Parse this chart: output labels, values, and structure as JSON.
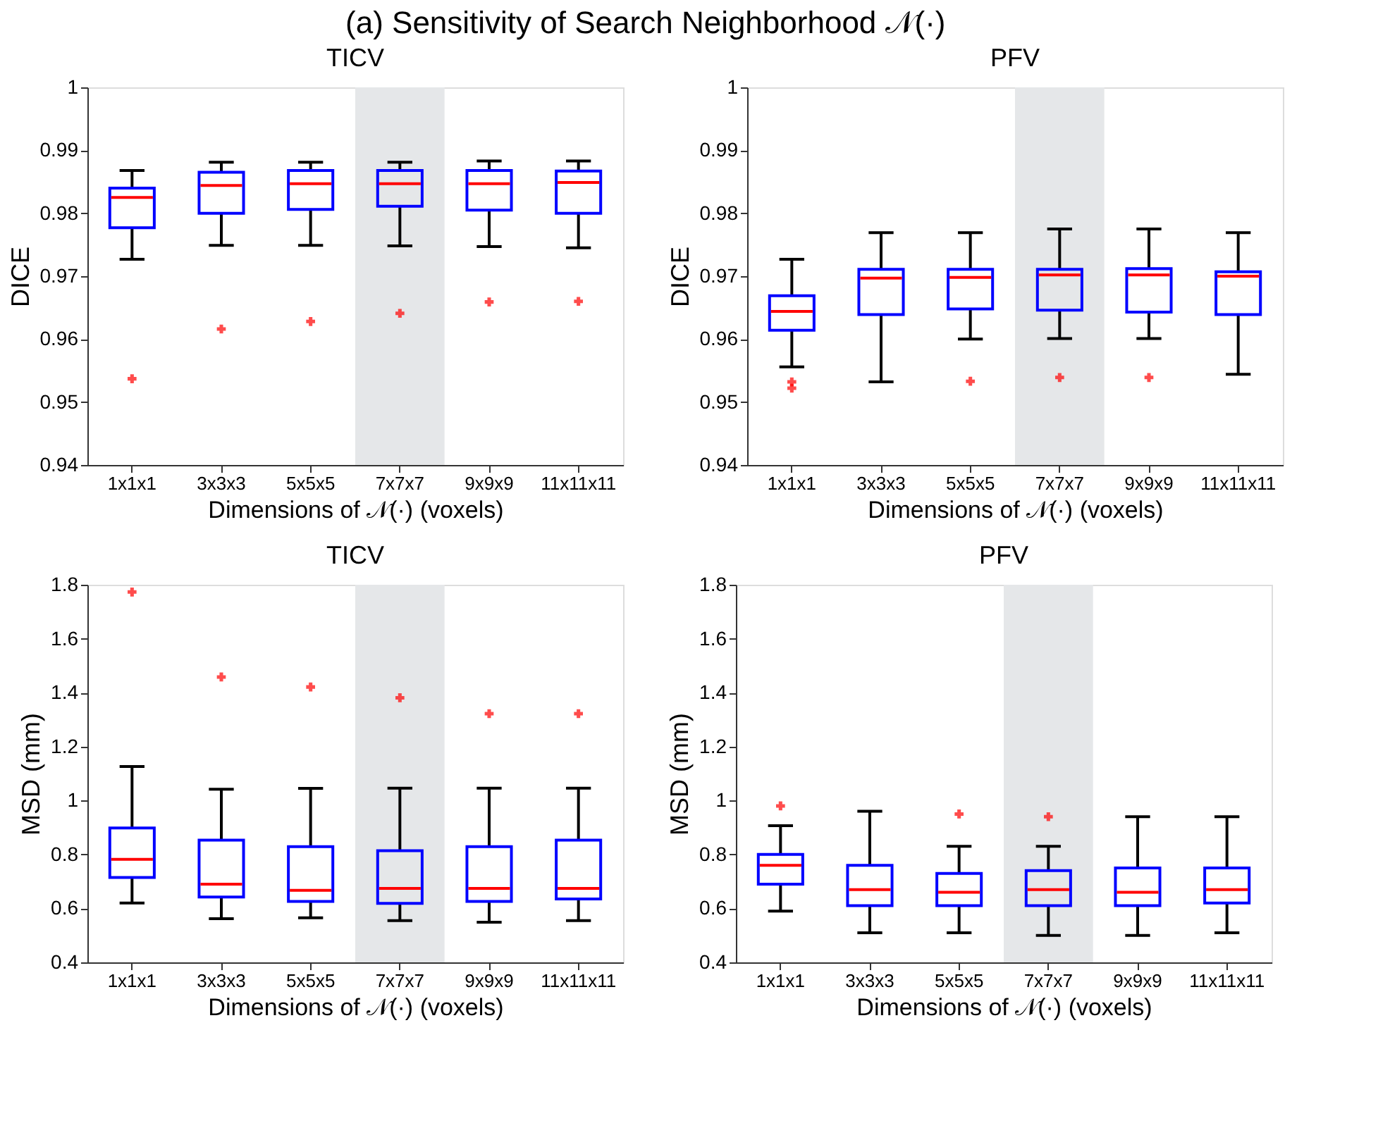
{
  "chart_data": [
    {
      "type": "box",
      "annotations": [
        "(a) Sensitivity of Search Neighborhood 𝒩(·)"
      ],
      "title": "TICV",
      "xlabel": "Dimensions of 𝒩(·) (voxels)",
      "ylabel": "DICE",
      "categories": [
        "1x1x1",
        "3x3x3",
        "5x5x5",
        "7x7x7",
        "9x9x9",
        "11x11x11"
      ],
      "ylim": [
        0.94,
        1
      ],
      "yticks": [
        0.94,
        0.95,
        0.96,
        0.97,
        0.98,
        0.99,
        1
      ],
      "grid": false,
      "bands": [
        {
          "axis": "x",
          "from": "7x7x7",
          "to": "7x7x7",
          "color": "#e5e7e9"
        }
      ],
      "series": [
        {
          "color": "#0000ff",
          "boxes": [
            {
              "low": 0.9727,
              "q1": 0.9777,
              "median": 0.9825,
              "q3": 0.984,
              "high": 0.9868,
              "outliers": [
                0.9537
              ]
            },
            {
              "low": 0.9749,
              "q1": 0.98,
              "median": 0.9844,
              "q3": 0.9865,
              "high": 0.9881,
              "outliers": [
                0.9616
              ]
            },
            {
              "low": 0.9749,
              "q1": 0.9806,
              "median": 0.9847,
              "q3": 0.9868,
              "high": 0.9881,
              "outliers": [
                0.9628
              ]
            },
            {
              "low": 0.9748,
              "q1": 0.9811,
              "median": 0.9847,
              "q3": 0.9868,
              "high": 0.9881,
              "outliers": [
                0.9641
              ]
            },
            {
              "low": 0.9747,
              "q1": 0.9805,
              "median": 0.9847,
              "q3": 0.9868,
              "high": 0.9883,
              "outliers": [
                0.9659
              ]
            },
            {
              "low": 0.9745,
              "q1": 0.98,
              "median": 0.9849,
              "q3": 0.9867,
              "high": 0.9883,
              "outliers": [
                0.966
              ]
            }
          ]
        }
      ]
    },
    {
      "type": "box",
      "title": "PFV",
      "xlabel": "Dimensions of 𝒩(·) (voxels)",
      "ylabel": "DICE",
      "categories": [
        "1x1x1",
        "3x3x3",
        "5x5x5",
        "7x7x7",
        "9x9x9",
        "11x11x11"
      ],
      "ylim": [
        0.94,
        1
      ],
      "yticks": [
        0.94,
        0.95,
        0.96,
        0.97,
        0.98,
        0.99,
        1
      ],
      "grid": false,
      "bands": [
        {
          "axis": "x",
          "from": "7x7x7",
          "to": "7x7x7",
          "color": "#e5e7e9"
        }
      ],
      "series": [
        {
          "color": "#0000ff",
          "boxes": [
            {
              "low": 0.9556,
              "q1": 0.9614,
              "median": 0.9644,
              "q3": 0.9669,
              "high": 0.9727,
              "outliers": [
                0.9532,
                0.9522
              ]
            },
            {
              "low": 0.9532,
              "q1": 0.9639,
              "median": 0.9697,
              "q3": 0.9711,
              "high": 0.9769
            },
            {
              "low": 0.96,
              "q1": 0.9648,
              "median": 0.9698,
              "q3": 0.9711,
              "high": 0.9769,
              "outliers": [
                0.9533
              ]
            },
            {
              "low": 0.9601,
              "q1": 0.9646,
              "median": 0.9702,
              "q3": 0.9711,
              "high": 0.9775,
              "outliers": [
                0.9539
              ]
            },
            {
              "low": 0.9601,
              "q1": 0.9643,
              "median": 0.9702,
              "q3": 0.9712,
              "high": 0.9775,
              "outliers": [
                0.9539
              ]
            },
            {
              "low": 0.9544,
              "q1": 0.9639,
              "median": 0.97,
              "q3": 0.9707,
              "high": 0.9769
            }
          ]
        }
      ]
    },
    {
      "type": "box",
      "title": "TICV",
      "xlabel": "Dimensions of 𝒩(·) (voxels)",
      "ylabel": "MSD (mm)",
      "categories": [
        "1x1x1",
        "3x3x3",
        "5x5x5",
        "7x7x7",
        "9x9x9",
        "11x11x11"
      ],
      "ylim": [
        0.4,
        1.8
      ],
      "yticks": [
        0.4,
        0.6,
        0.8,
        1,
        1.2,
        1.4,
        1.6,
        1.8
      ],
      "grid": false,
      "bands": [
        {
          "axis": "x",
          "from": "7x7x7",
          "to": "7x7x7",
          "color": "#e5e7e9"
        }
      ],
      "series": [
        {
          "color": "#0000ff",
          "boxes": [
            {
              "low": 0.62,
              "q1": 0.715,
              "median": 0.782,
              "q3": 0.898,
              "high": 1.126,
              "outliers": [
                1.773
              ]
            },
            {
              "low": 0.562,
              "q1": 0.642,
              "median": 0.69,
              "q3": 0.853,
              "high": 1.042,
              "outliers": [
                1.458
              ]
            },
            {
              "low": 0.565,
              "q1": 0.626,
              "median": 0.667,
              "q3": 0.829,
              "high": 1.045,
              "outliers": [
                1.421
              ]
            },
            {
              "low": 0.555,
              "q1": 0.619,
              "median": 0.674,
              "q3": 0.814,
              "high": 1.046,
              "outliers": [
                1.381
              ]
            },
            {
              "low": 0.549,
              "q1": 0.626,
              "median": 0.674,
              "q3": 0.829,
              "high": 1.046,
              "outliers": [
                1.322
              ]
            },
            {
              "low": 0.555,
              "q1": 0.635,
              "median": 0.674,
              "q3": 0.853,
              "high": 1.046,
              "outliers": [
                1.322
              ]
            }
          ]
        }
      ]
    },
    {
      "type": "box",
      "title": "PFV",
      "xlabel": "Dimensions of 𝒩(·) (voxels)",
      "ylabel": "MSD (mm)",
      "categories": [
        "1x1x1",
        "3x3x3",
        "5x5x5",
        "7x7x7",
        "9x9x9",
        "11x11x11"
      ],
      "ylim": [
        0.4,
        1.8
      ],
      "yticks": [
        0.4,
        0.6,
        0.8,
        1,
        1.2,
        1.4,
        1.6,
        1.8
      ],
      "grid": false,
      "bands": [
        {
          "axis": "x",
          "from": "7x7x7",
          "to": "7x7x7",
          "color": "#e5e7e9"
        }
      ],
      "series": [
        {
          "color": "#0000ff",
          "boxes": [
            {
              "low": 0.59,
              "q1": 0.69,
              "median": 0.76,
              "q3": 0.8,
              "high": 0.907,
              "outliers": [
                0.98
              ]
            },
            {
              "low": 0.51,
              "q1": 0.61,
              "median": 0.67,
              "q3": 0.76,
              "high": 0.96
            },
            {
              "low": 0.51,
              "q1": 0.61,
              "median": 0.66,
              "q3": 0.73,
              "high": 0.83,
              "outliers": [
                0.95
              ]
            },
            {
              "low": 0.5,
              "q1": 0.61,
              "median": 0.67,
              "q3": 0.74,
              "high": 0.83,
              "outliers": [
                0.94
              ]
            },
            {
              "low": 0.5,
              "q1": 0.61,
              "median": 0.66,
              "q3": 0.75,
              "high": 0.94
            },
            {
              "low": 0.51,
              "q1": 0.62,
              "median": 0.67,
              "q3": 0.75,
              "high": 0.94
            }
          ]
        }
      ]
    }
  ]
}
